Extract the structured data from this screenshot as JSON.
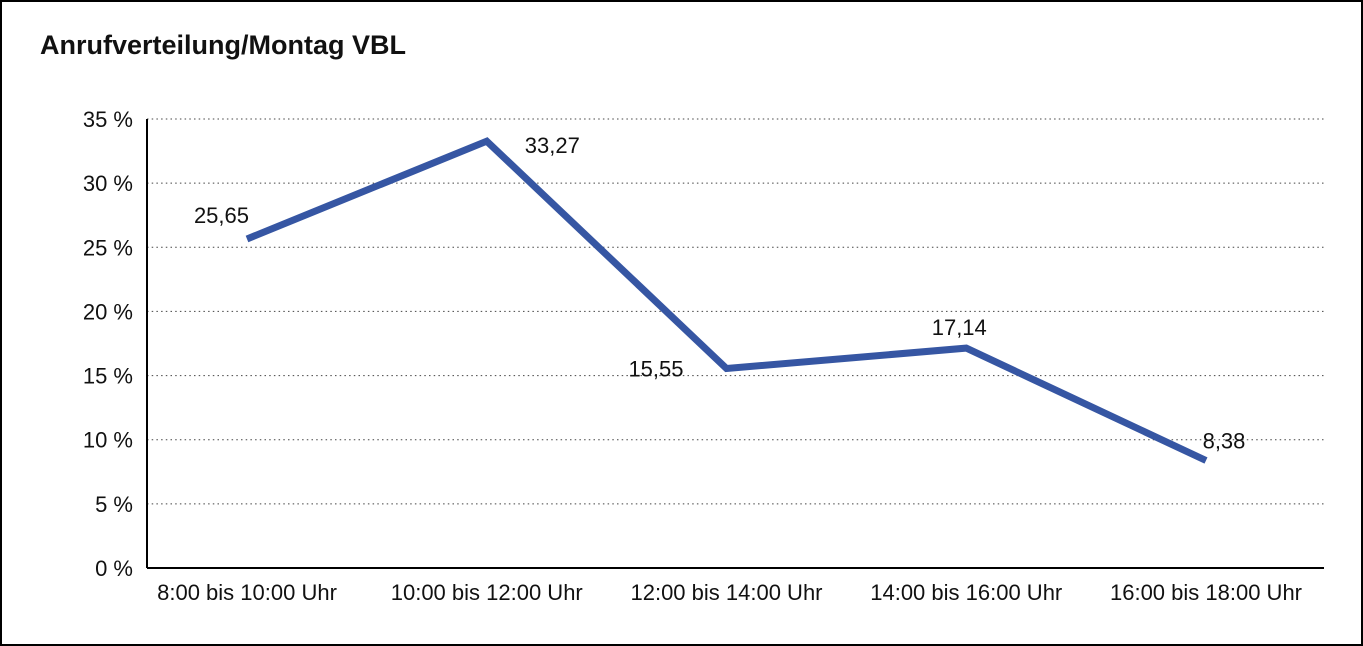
{
  "window": {
    "background": "#ffffff",
    "frame_color": "#000000"
  },
  "chart_data": {
    "type": "line",
    "title": "Anrufverteilung/Montag VBL",
    "categories": [
      "8:00 bis 10:00 Uhr",
      "10:00 bis 12:00 Uhr",
      "12:00 bis 14:00 Uhr",
      "14:00 bis 16:00 Uhr",
      "16:00 bis 18:00 Uhr"
    ],
    "values": [
      25.65,
      33.27,
      15.55,
      17.14,
      8.38
    ],
    "value_labels": [
      "25,65",
      "33,27",
      "15,55",
      "17,14",
      "8,38"
    ],
    "xlabel": "",
    "ylabel": "",
    "ylim": [
      0,
      35
    ],
    "yticks": [
      0,
      5,
      10,
      15,
      20,
      25,
      30,
      35
    ],
    "ytick_labels": [
      "0 %",
      "5 %",
      "10 %",
      "15 %",
      "20 %",
      "25 %",
      "30 %",
      "35 %"
    ],
    "grid": "horizontal-dotted",
    "legend": "none",
    "series_color": "#3656A3",
    "gridline_color": "#444444",
    "axis_color": "#000000",
    "text_color": "#111111"
  }
}
